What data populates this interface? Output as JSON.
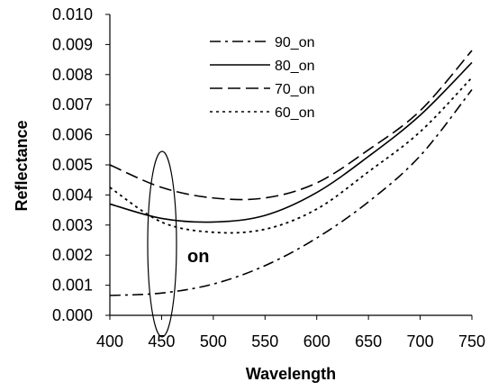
{
  "chart_data": {
    "type": "line",
    "xlabel": "Wavelength",
    "ylabel": "Reflectance",
    "xlim": [
      400,
      750
    ],
    "ylim": [
      0,
      0.01
    ],
    "x_ticks": [
      "400",
      "450",
      "500",
      "550",
      "600",
      "650",
      "700",
      "750"
    ],
    "y_ticks": [
      "0.000",
      "0.001",
      "0.002",
      "0.003",
      "0.004",
      "0.005",
      "0.006",
      "0.007",
      "0.008",
      "0.009",
      "0.010"
    ],
    "grid": false,
    "legend_position": "top-center",
    "annotation": "on",
    "x": [
      400,
      450,
      500,
      550,
      600,
      650,
      700,
      750
    ],
    "series": [
      {
        "name": "90_on",
        "dash": "dash-dot",
        "values": [
          0.00066,
          0.00074,
          0.00104,
          0.00165,
          0.00257,
          0.00377,
          0.0053,
          0.0075
        ]
      },
      {
        "name": "80_on",
        "dash": "solid",
        "values": [
          0.0037,
          0.00322,
          0.0031,
          0.00332,
          0.00408,
          0.00528,
          0.00665,
          0.0084
        ]
      },
      {
        "name": "70_on",
        "dash": "dash",
        "values": [
          0.005,
          0.00425,
          0.0039,
          0.0039,
          0.0044,
          0.0055,
          0.0068,
          0.0088
        ]
      },
      {
        "name": "60_on",
        "dash": "dot",
        "values": [
          0.00425,
          0.0031,
          0.00276,
          0.00286,
          0.00353,
          0.00477,
          0.0061,
          0.0079
        ]
      }
    ]
  }
}
